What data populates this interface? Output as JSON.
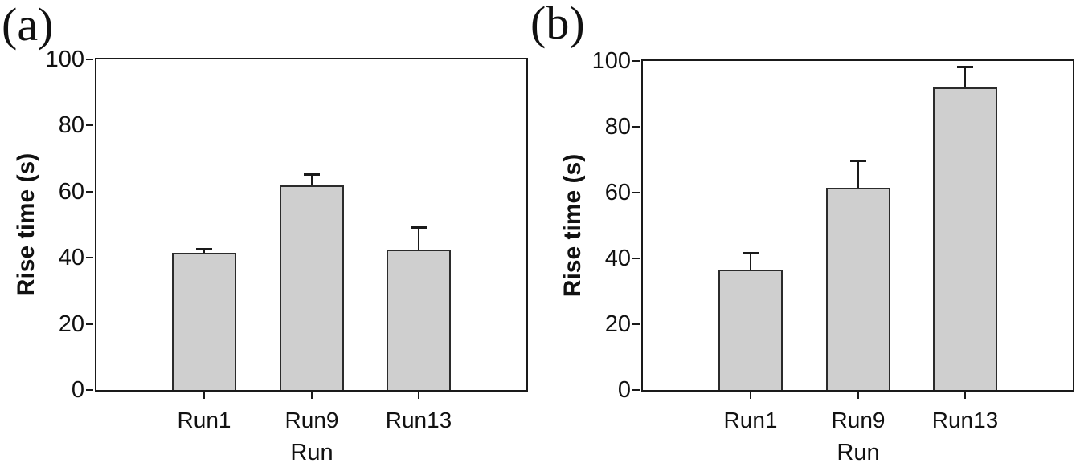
{
  "figure": {
    "panels": [
      {
        "panel_label": "(a)"
      },
      {
        "panel_label": "(b)"
      }
    ]
  },
  "chart_data": [
    {
      "type": "bar",
      "panel_label": "(a)",
      "categories": [
        "Run1",
        "Run9",
        "Run13"
      ],
      "values": [
        41.5,
        62,
        42.5
      ],
      "errors_plus": [
        1,
        3,
        6.5
      ],
      "title": "",
      "xlabel": "Run",
      "ylabel": "Rise time (s)",
      "ylim": [
        0,
        100
      ],
      "yticks": [
        0,
        20,
        40,
        60,
        80,
        100
      ],
      "grid": "off",
      "legend": "none",
      "bar_fill": "#cfcfcf",
      "bar_border": "#2b2b2b",
      "axis_color": "#1a1a1a"
    },
    {
      "type": "bar",
      "panel_label": "(b)",
      "categories": [
        "Run1",
        "Run9",
        "Run13"
      ],
      "values": [
        36.5,
        61.5,
        92
      ],
      "errors_plus": [
        5,
        8,
        6
      ],
      "title": "",
      "xlabel": "Run",
      "ylabel": "Rise time (s)",
      "ylim": [
        0,
        100
      ],
      "yticks": [
        0,
        20,
        40,
        60,
        80,
        100
      ],
      "grid": "off",
      "legend": "none",
      "bar_fill": "#cfcfcf",
      "bar_border": "#2b2b2b",
      "axis_color": "#1a1a1a"
    }
  ]
}
